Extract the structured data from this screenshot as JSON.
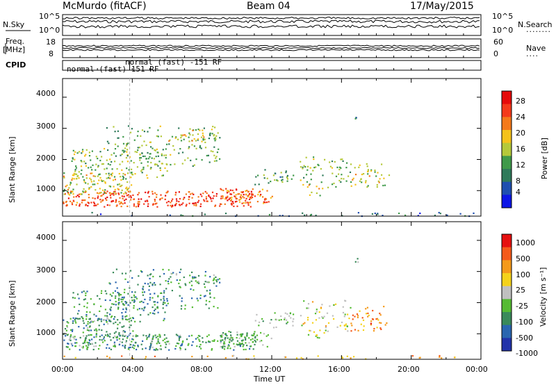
{
  "header": {
    "station": "McMurdo (fitACF)",
    "beam": "Beam 04",
    "date": "17/May/2015"
  },
  "noise_panel": {
    "left_label": "N.Sky",
    "right_label": "N.Search",
    "right_line": "········",
    "y_ticks": [
      "10^5",
      "10^0"
    ]
  },
  "freq_panel": {
    "left_label_1": "Freq.",
    "left_label_2": "[MHz]",
    "left_ticks": [
      "18",
      "8"
    ],
    "right_label": "Nave",
    "right_line": "····",
    "right_ticks": [
      "60",
      "0"
    ]
  },
  "cpid_panel": {
    "label": "CPID",
    "entries": [
      "normal (fast) 151 RF",
      "normal (fast) -151 RF"
    ]
  },
  "chart_data": [
    {
      "type": "heatmap",
      "name": "power",
      "ylabel": "Slant Range [km]",
      "xlabel": "Time UT",
      "ylim": [
        180,
        4600
      ],
      "xlim": [
        0,
        24
      ],
      "y_ticks": [
        "4000",
        "3000",
        "2000",
        "1000"
      ],
      "x_ticks": [
        "00:00",
        "04:00",
        "08:00",
        "12:00",
        "16:00",
        "20:00",
        "00:00"
      ],
      "colorbar": {
        "label": "Power [dB]",
        "ticks": [
          "28",
          "24",
          "20",
          "16",
          "12",
          "8",
          "4"
        ],
        "colors": [
          "#0d16e6",
          "#1f4fb0",
          "#2f7a5a",
          "#3f9a4a",
          "#b5c93a",
          "#f5c21b",
          "#f57a1b",
          "#f53a1b",
          "#e60a0a"
        ]
      }
    },
    {
      "type": "heatmap",
      "name": "velocity",
      "ylabel": "Slant Range [km]",
      "xlabel": "Time UT",
      "ylim": [
        180,
        4600
      ],
      "xlim": [
        0,
        24
      ],
      "y_ticks": [
        "4000",
        "3000",
        "2000",
        "1000"
      ],
      "x_ticks": [
        "00:00",
        "04:00",
        "08:00",
        "12:00",
        "16:00",
        "20:00",
        "00:00"
      ],
      "colorbar": {
        "label": "Velocity [m s⁻¹]",
        "ticks": [
          "1000",
          "500",
          "100",
          "25",
          "-25",
          "-100",
          "-500",
          "-1000"
        ],
        "colors": [
          "#2233aa",
          "#2a66b0",
          "#3a8a5a",
          "#55bb33",
          "#c0c0c0",
          "#f5d21b",
          "#f59a1b",
          "#f55a1b",
          "#e61010"
        ]
      }
    }
  ],
  "x_axis": {
    "ticks": [
      "00:00",
      "04:00",
      "08:00",
      "12:00",
      "16:00",
      "20:00",
      "00:00"
    ],
    "label": "Time UT"
  }
}
